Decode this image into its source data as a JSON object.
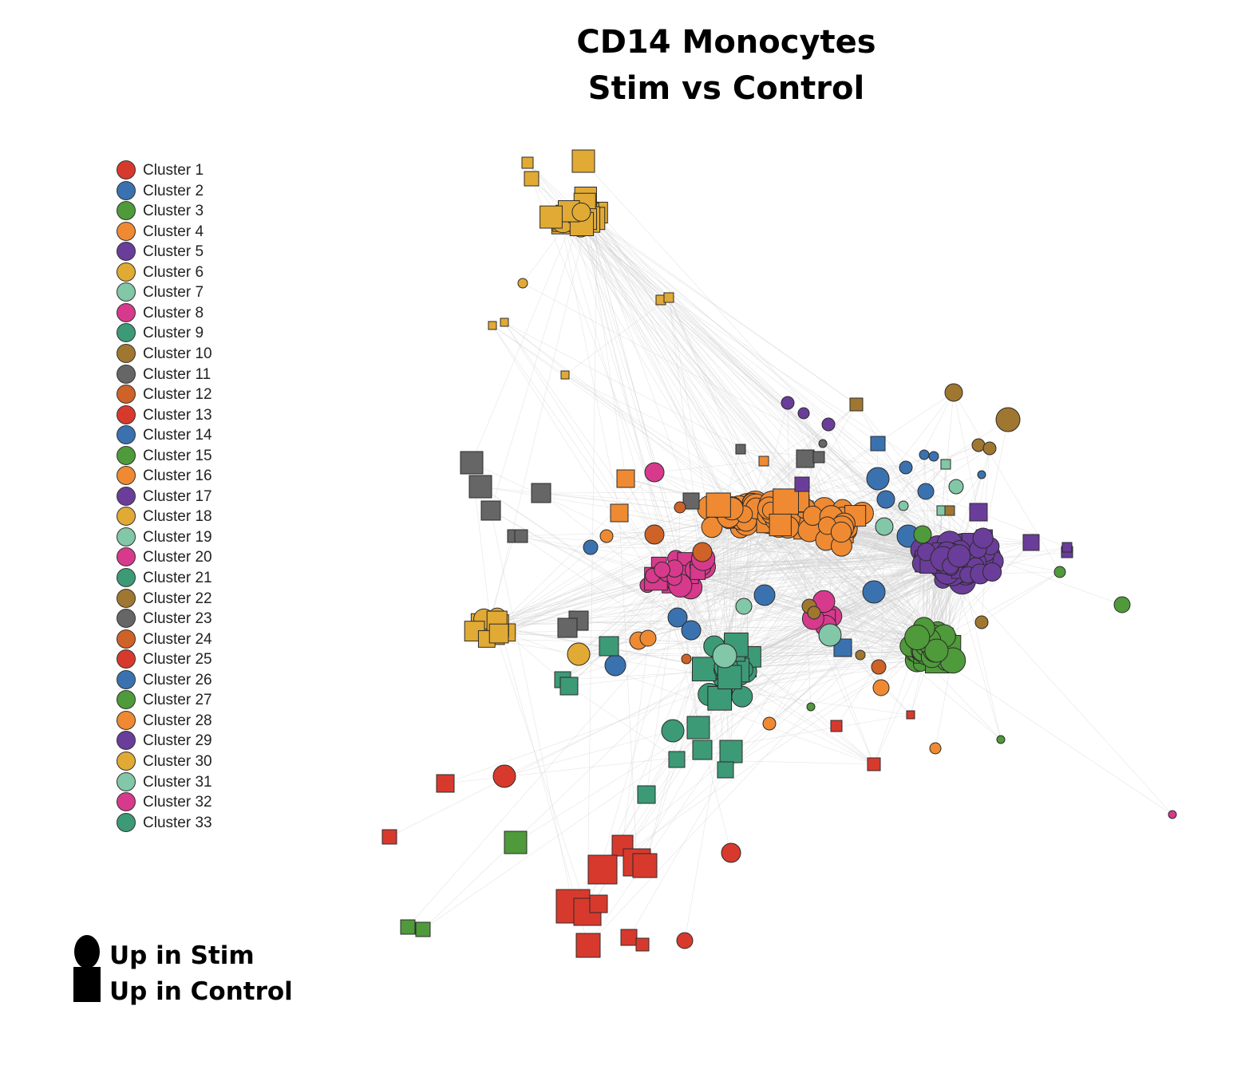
{
  "title": {
    "line1": "CD14 Monocytes",
    "line2": "Stim vs Control"
  },
  "legend": {
    "items": [
      {
        "label": "Cluster 1",
        "color": "#d73a2c"
      },
      {
        "label": "Cluster 2",
        "color": "#3a72b0"
      },
      {
        "label": "Cluster 3",
        "color": "#4f9a3a"
      },
      {
        "label": "Cluster 4",
        "color": "#ef8a32"
      },
      {
        "label": "Cluster 5",
        "color": "#6a3d9a"
      },
      {
        "label": "Cluster 6",
        "color": "#e1aa35"
      },
      {
        "label": "Cluster 7",
        "color": "#82c7a7"
      },
      {
        "label": "Cluster 8",
        "color": "#d73a8c"
      },
      {
        "label": "Cluster 9",
        "color": "#3d9a77"
      },
      {
        "label": "Cluster 10",
        "color": "#a07730"
      },
      {
        "label": "Cluster 11",
        "color": "#666666"
      },
      {
        "label": "Cluster 12",
        "color": "#cf6226"
      },
      {
        "label": "Cluster 13",
        "color": "#d73a2c"
      },
      {
        "label": "Cluster 14",
        "color": "#3a72b0"
      },
      {
        "label": "Cluster 15",
        "color": "#4f9a3a"
      },
      {
        "label": "Cluster 16",
        "color": "#ef8a32"
      },
      {
        "label": "Cluster 17",
        "color": "#6a3d9a"
      },
      {
        "label": "Cluster 18",
        "color": "#e1aa35"
      },
      {
        "label": "Cluster 19",
        "color": "#82c7a7"
      },
      {
        "label": "Cluster 20",
        "color": "#d73a8c"
      },
      {
        "label": "Cluster 21",
        "color": "#3d9a77"
      },
      {
        "label": "Cluster 22",
        "color": "#a07730"
      },
      {
        "label": "Cluster 23",
        "color": "#666666"
      },
      {
        "label": "Cluster 24",
        "color": "#cf6226"
      },
      {
        "label": "Cluster 25",
        "color": "#d73a2c"
      },
      {
        "label": "Cluster 26",
        "color": "#3a72b0"
      },
      {
        "label": "Cluster 27",
        "color": "#4f9a3a"
      },
      {
        "label": "Cluster 28",
        "color": "#ef8a32"
      },
      {
        "label": "Cluster 29",
        "color": "#6a3d9a"
      },
      {
        "label": "Cluster 30",
        "color": "#e1aa35"
      },
      {
        "label": "Cluster 31",
        "color": "#82c7a7"
      },
      {
        "label": "Cluster 32",
        "color": "#d73a8c"
      },
      {
        "label": "Cluster 33",
        "color": "#3d9a77"
      }
    ]
  },
  "shape_legend": {
    "circle_label": "Up in Stim",
    "square_label": "Up in Control"
  }
}
